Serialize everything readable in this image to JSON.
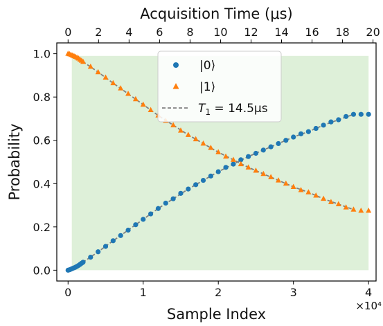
{
  "chart_data": {
    "type": "scatter",
    "title": "",
    "xlabel": "Sample Index",
    "ylabel": "Probability",
    "x2label": "Acquisition Time (μs)",
    "x_offset_label": "×10⁴",
    "xlim": [
      -0.15,
      4.1
    ],
    "ylim": [
      -0.05,
      1.05
    ],
    "x2lim": [
      -0.74,
      20.2
    ],
    "x_ticks": [
      0,
      1,
      2,
      3,
      4
    ],
    "x_tick_labels": [
      "0",
      "1",
      "2",
      "3",
      "4"
    ],
    "x2_ticks": [
      0,
      2,
      4,
      6,
      8,
      10,
      12,
      14,
      16,
      18,
      20
    ],
    "x2_tick_labels": [
      "0",
      "2",
      "4",
      "6",
      "8",
      "10",
      "12",
      "14",
      "16",
      "18",
      "20"
    ],
    "y_ticks": [
      0.0,
      0.2,
      0.4,
      0.6,
      0.8,
      1.0
    ],
    "y_tick_labels": [
      "0.0",
      "0.2",
      "0.4",
      "0.6",
      "0.8",
      "1.0"
    ],
    "grid": false,
    "legend_position": "top-center",
    "background_band": {
      "x_range": [
        0.05,
        4.0
      ],
      "y_range": [
        0.0,
        0.99
      ],
      "color": "#c8e6c0"
    },
    "series": [
      {
        "name": "|0⟩",
        "marker": "circle",
        "color": "#1f77b4",
        "x": [
          0.0,
          0.02,
          0.04,
          0.06,
          0.08,
          0.1,
          0.12,
          0.14,
          0.16,
          0.18,
          0.2,
          0.3,
          0.4,
          0.5,
          0.6,
          0.7,
          0.8,
          0.9,
          1.0,
          1.1,
          1.2,
          1.3,
          1.4,
          1.5,
          1.6,
          1.7,
          1.8,
          1.9,
          2.0,
          2.1,
          2.2,
          2.3,
          2.4,
          2.5,
          2.6,
          2.7,
          2.8,
          2.9,
          3.0,
          3.1,
          3.2,
          3.3,
          3.4,
          3.5,
          3.6,
          3.7,
          3.8,
          3.9,
          4.0
        ],
        "y": [
          0.0,
          0.002,
          0.005,
          0.008,
          0.011,
          0.014,
          0.018,
          0.022,
          0.027,
          0.032,
          0.037,
          0.06,
          0.085,
          0.11,
          0.136,
          0.16,
          0.185,
          0.21,
          0.235,
          0.26,
          0.285,
          0.31,
          0.33,
          0.355,
          0.375,
          0.395,
          0.415,
          0.435,
          0.455,
          0.475,
          0.49,
          0.51,
          0.525,
          0.54,
          0.555,
          0.57,
          0.585,
          0.6,
          0.615,
          0.63,
          0.64,
          0.655,
          0.67,
          0.685,
          0.695,
          0.71,
          0.72,
          0.72,
          0.72
        ]
      },
      {
        "name": "|1⟩",
        "marker": "triangle",
        "color": "#ff7f0e",
        "x": [
          0.0,
          0.02,
          0.04,
          0.06,
          0.08,
          0.1,
          0.12,
          0.14,
          0.16,
          0.18,
          0.2,
          0.3,
          0.4,
          0.5,
          0.6,
          0.7,
          0.8,
          0.9,
          1.0,
          1.1,
          1.2,
          1.3,
          1.4,
          1.5,
          1.6,
          1.7,
          1.8,
          1.9,
          2.0,
          2.1,
          2.2,
          2.3,
          2.4,
          2.5,
          2.6,
          2.7,
          2.8,
          2.9,
          3.0,
          3.1,
          3.2,
          3.3,
          3.4,
          3.5,
          3.6,
          3.7,
          3.8,
          3.9,
          4.0
        ],
        "y": [
          1.0,
          0.998,
          0.995,
          0.992,
          0.989,
          0.986,
          0.982,
          0.978,
          0.973,
          0.968,
          0.963,
          0.94,
          0.915,
          0.89,
          0.864,
          0.84,
          0.815,
          0.79,
          0.765,
          0.74,
          0.715,
          0.69,
          0.67,
          0.645,
          0.625,
          0.605,
          0.585,
          0.565,
          0.545,
          0.525,
          0.51,
          0.49,
          0.475,
          0.46,
          0.445,
          0.43,
          0.415,
          0.4,
          0.385,
          0.37,
          0.36,
          0.345,
          0.33,
          0.315,
          0.305,
          0.29,
          0.28,
          0.275,
          0.275
        ]
      },
      {
        "name": "T₁ = 14.5μs",
        "legend_label_main": "T",
        "legend_label_sub": "1",
        "legend_label_rest": " = 14.5μs",
        "marker": "dashed-line",
        "color": "#808080",
        "x": [
          0.0,
          0.2,
          0.4,
          0.6,
          0.8,
          1.0,
          1.2,
          1.4,
          1.6,
          1.8,
          2.0,
          2.2,
          2.4,
          2.6,
          2.8,
          3.0,
          3.2,
          3.4,
          3.6,
          3.8
        ],
        "y_upper": [
          1.0,
          0.963,
          0.915,
          0.864,
          0.815,
          0.765,
          0.715,
          0.67,
          0.625,
          0.585,
          0.545,
          0.51,
          0.475,
          0.445,
          0.415,
          0.385,
          0.36,
          0.33,
          0.305,
          0.28
        ],
        "y_lower": [
          0.0,
          0.037,
          0.085,
          0.136,
          0.185,
          0.235,
          0.285,
          0.33,
          0.375,
          0.415,
          0.455,
          0.49,
          0.525,
          0.555,
          0.585,
          0.615,
          0.64,
          0.67,
          0.695,
          0.72
        ]
      }
    ]
  }
}
